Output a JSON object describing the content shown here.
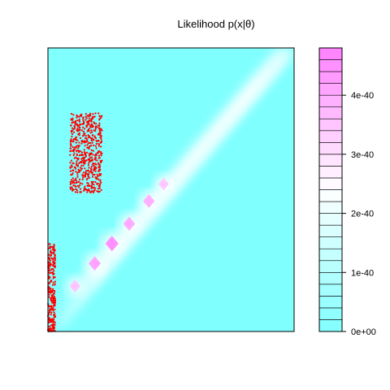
{
  "chart_data": {
    "type": "heatmap",
    "title": "Likelihood p(x|θ)",
    "xlabel": "",
    "ylabel": "",
    "axes_ticks_shown": false,
    "grid": false,
    "colors": {
      "low": "#80FFFF",
      "mid": "#FFFFFF",
      "high": "#FF80FF",
      "points": "#FF0000",
      "frame": "#000000"
    },
    "likelihood_surface": {
      "description_kind": "diagonal ridge",
      "ridge_peaks": [
        {
          "u": 0.11,
          "v": 0.16,
          "value": 2.1e-40
        },
        {
          "u": 0.19,
          "v": 0.24,
          "value": 3.4e-40
        },
        {
          "u": 0.26,
          "v": 0.31,
          "value": 4.2e-40
        },
        {
          "u": 0.33,
          "v": 0.38,
          "value": 3.1e-40
        },
        {
          "u": 0.41,
          "v": 0.46,
          "value": 2.9e-40
        },
        {
          "u": 0.47,
          "v": 0.52,
          "value": 2e-40
        }
      ]
    },
    "point_clusters": [
      {
        "u_range": [
          0.09,
          0.22
        ],
        "v_range": [
          0.49,
          0.77
        ],
        "count": 600
      },
      {
        "u_range": [
          0.0,
          0.03
        ],
        "v_range": [
          0.0,
          0.31
        ],
        "count": 260
      }
    ],
    "colorbar": {
      "min": 0,
      "max": 4.8e-40,
      "levels": 24,
      "tick_values": [
        0,
        1e-40,
        2e-40,
        3e-40,
        4e-40
      ],
      "tick_labels": [
        "0e+00",
        "1e-40",
        "2e-40",
        "3e-40",
        "4e-40"
      ]
    }
  }
}
